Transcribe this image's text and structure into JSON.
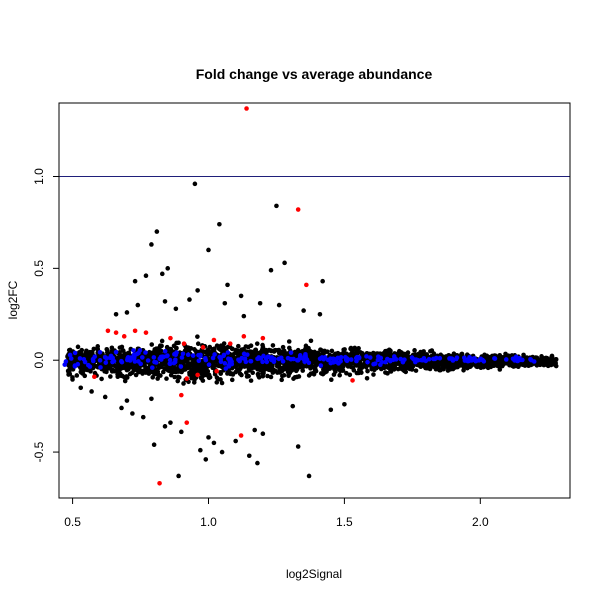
{
  "chart_data": {
    "type": "scatter",
    "title": "Fold change vs average abundance",
    "xlabel": "log2Signal",
    "ylabel": "log2FC",
    "xlim": [
      0.45,
      2.33
    ],
    "ylim": [
      -0.75,
      1.4
    ],
    "xticks": [
      0.5,
      1.0,
      1.5,
      2.0
    ],
    "xtick_labels": [
      "0.5",
      "1.0",
      "1.5",
      "2.0"
    ],
    "yticks": [
      -0.5,
      0.0,
      0.5,
      1.0
    ],
    "ytick_labels": [
      "-0.5",
      "0.0",
      "0.5",
      "1.0"
    ],
    "grid": false,
    "legend": "none",
    "hline": {
      "y": 1.0,
      "color": "#1f1f7a"
    },
    "series": [
      {
        "color": "#000000",
        "x": [
          0.95,
          1.25,
          0.79,
          1.04,
          0.81,
          0.77,
          0.85,
          0.73,
          1.0,
          1.28,
          1.42,
          0.83,
          1.07,
          0.96,
          1.23,
          1.06,
          0.74,
          1.12,
          0.88,
          1.35,
          1.41,
          1.19,
          0.7,
          0.84,
          0.66,
          0.93,
          1.26,
          1.13,
          0.68,
          0.72,
          0.86,
          1.2,
          1.33,
          1.0,
          0.99,
          0.97,
          1.17,
          1.37,
          0.8,
          0.89,
          1.02,
          1.05,
          0.76,
          0.84,
          0.9,
          1.1,
          1.15,
          1.18,
          0.7,
          0.79,
          1.31,
          1.45,
          1.5,
          0.62,
          0.57,
          0.53
        ],
        "y": [
          0.96,
          0.84,
          0.63,
          0.74,
          0.7,
          0.46,
          0.5,
          0.43,
          0.6,
          0.53,
          0.43,
          0.47,
          0.41,
          0.38,
          0.49,
          0.31,
          0.3,
          0.35,
          0.28,
          0.27,
          0.25,
          0.31,
          0.26,
          0.32,
          0.25,
          0.33,
          0.3,
          0.24,
          -0.26,
          -0.29,
          -0.34,
          -0.4,
          -0.47,
          -0.42,
          -0.54,
          -0.49,
          -0.38,
          -0.63,
          -0.46,
          -0.63,
          -0.45,
          -0.5,
          -0.31,
          -0.36,
          -0.39,
          -0.44,
          -0.52,
          -0.56,
          -0.22,
          -0.21,
          -0.25,
          -0.27,
          -0.24,
          -0.2,
          -0.17,
          -0.15
        ]
      },
      {
        "color": "#ff0000",
        "x": [
          1.14,
          1.33,
          1.36,
          0.82,
          0.92,
          0.63,
          0.66,
          0.69,
          0.73,
          0.77,
          0.86,
          0.91,
          0.98,
          1.02,
          1.08,
          1.13,
          1.2,
          1.12,
          0.96,
          0.92,
          0.58,
          1.53,
          1.03,
          0.9
        ],
        "y": [
          1.37,
          0.82,
          0.41,
          -0.67,
          -0.34,
          0.16,
          0.15,
          0.13,
          0.16,
          0.15,
          0.12,
          0.09,
          0.07,
          0.11,
          0.09,
          0.13,
          0.12,
          -0.41,
          -0.08,
          -0.1,
          -0.09,
          -0.11,
          -0.06,
          -0.19
        ]
      }
    ]
  }
}
